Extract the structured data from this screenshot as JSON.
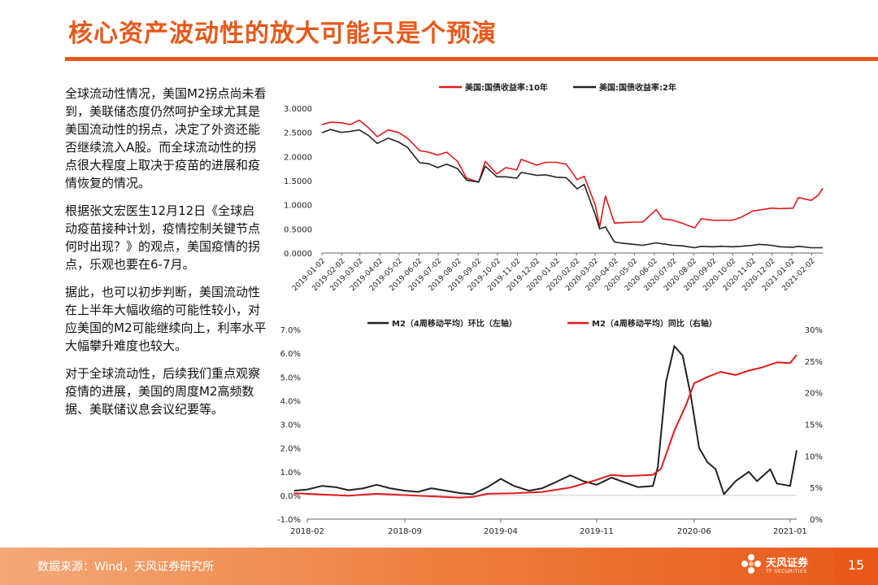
{
  "page": {
    "title": "核心资产波动性的放大可能只是个预演",
    "paragraphs": [
      "全球流动性情况，美国M2拐点尚未看到，美联储态度仍然呵护全球尤其是美国流动性的拐点，决定了外资还能否继续流入A股。而全球流动性的拐点很大程度上取决于疫苗的进展和疫情恢复的情况。",
      "根据张文宏医生12月12日《全球启动疫苗接种计划，疫情控制关键节点何时出现？》的观点，美国疫情的拐点，乐观也要在6-7月。",
      "据此，也可以初步判断，美国流动性在上半年大幅收缩的可能性较小，对应美国的M2可能继续向上，利率水平大幅攀升难度也较大。",
      "对于全球流动性，后续我们重点观察疫情的进展，美国的周度M2高频数据、美联储议息会议纪要等。"
    ],
    "source": "数据来源：Wind，天风证券研究所",
    "page_number": "15",
    "logo_text": "天风证券",
    "logo_sub": "TF SECURITIES",
    "colors": {
      "accent": "#e8591a",
      "red_series": "#e31a1c",
      "black_series": "#222222"
    }
  },
  "chart_data": [
    {
      "type": "line",
      "title": "",
      "series": [
        {
          "name": "美国:国债收益率:10年",
          "color": "#e31a1c",
          "points": [
            [
              "2019-01-02",
              2.66
            ],
            [
              "2019-01-15",
              2.71
            ],
            [
              "2019-02-01",
              2.7
            ],
            [
              "2019-02-15",
              2.66
            ],
            [
              "2019-03-01",
              2.75
            ],
            [
              "2019-03-15",
              2.6
            ],
            [
              "2019-03-29",
              2.41
            ],
            [
              "2019-04-15",
              2.55
            ],
            [
              "2019-05-01",
              2.5
            ],
            [
              "2019-05-15",
              2.38
            ],
            [
              "2019-06-03",
              2.12
            ],
            [
              "2019-06-17",
              2.09
            ],
            [
              "2019-07-01",
              2.03
            ],
            [
              "2019-07-15",
              2.09
            ],
            [
              "2019-08-01",
              1.9
            ],
            [
              "2019-08-15",
              1.55
            ],
            [
              "2019-09-03",
              1.47
            ],
            [
              "2019-09-13",
              1.9
            ],
            [
              "2019-10-01",
              1.64
            ],
            [
              "2019-10-15",
              1.77
            ],
            [
              "2019-11-01",
              1.72
            ],
            [
              "2019-11-08",
              1.94
            ],
            [
              "2019-12-02",
              1.82
            ],
            [
              "2019-12-16",
              1.88
            ],
            [
              "2020-01-02",
              1.88
            ],
            [
              "2020-01-17",
              1.84
            ],
            [
              "2020-02-03",
              1.52
            ],
            [
              "2020-02-14",
              1.59
            ],
            [
              "2020-03-02",
              1.0
            ],
            [
              "2020-03-09",
              0.54
            ],
            [
              "2020-03-18",
              1.18
            ],
            [
              "2020-04-01",
              0.62
            ],
            [
              "2020-04-15",
              0.63
            ],
            [
              "2020-05-01",
              0.64
            ],
            [
              "2020-05-15",
              0.64
            ],
            [
              "2020-06-05",
              0.9
            ],
            [
              "2020-06-15",
              0.71
            ],
            [
              "2020-07-01",
              0.68
            ],
            [
              "2020-07-15",
              0.62
            ],
            [
              "2020-08-04",
              0.52
            ],
            [
              "2020-08-14",
              0.71
            ],
            [
              "2020-09-01",
              0.68
            ],
            [
              "2020-09-15",
              0.68
            ],
            [
              "2020-10-01",
              0.68
            ],
            [
              "2020-10-15",
              0.74
            ],
            [
              "2020-11-02",
              0.87
            ],
            [
              "2020-11-12",
              0.89
            ],
            [
              "2020-12-01",
              0.93
            ],
            [
              "2020-12-15",
              0.92
            ],
            [
              "2021-01-04",
              0.93
            ],
            [
              "2021-01-12",
              1.15
            ],
            [
              "2021-02-01",
              1.09
            ],
            [
              "2021-02-12",
              1.2
            ],
            [
              "2021-02-19",
              1.34
            ]
          ]
        },
        {
          "name": "美国:国债收益率:2年",
          "color": "#222222",
          "points": [
            [
              "2019-01-02",
              2.49
            ],
            [
              "2019-01-15",
              2.56
            ],
            [
              "2019-02-01",
              2.5
            ],
            [
              "2019-02-15",
              2.52
            ],
            [
              "2019-03-01",
              2.55
            ],
            [
              "2019-03-15",
              2.44
            ],
            [
              "2019-03-29",
              2.27
            ],
            [
              "2019-04-15",
              2.38
            ],
            [
              "2019-05-01",
              2.3
            ],
            [
              "2019-05-15",
              2.19
            ],
            [
              "2019-06-03",
              1.87
            ],
            [
              "2019-06-17",
              1.85
            ],
            [
              "2019-07-01",
              1.77
            ],
            [
              "2019-07-15",
              1.84
            ],
            [
              "2019-08-01",
              1.75
            ],
            [
              "2019-08-15",
              1.51
            ],
            [
              "2019-09-03",
              1.47
            ],
            [
              "2019-09-13",
              1.8
            ],
            [
              "2019-10-01",
              1.58
            ],
            [
              "2019-10-15",
              1.58
            ],
            [
              "2019-11-01",
              1.55
            ],
            [
              "2019-11-08",
              1.67
            ],
            [
              "2019-12-02",
              1.61
            ],
            [
              "2019-12-16",
              1.62
            ],
            [
              "2020-01-02",
              1.57
            ],
            [
              "2020-01-17",
              1.56
            ],
            [
              "2020-02-03",
              1.33
            ],
            [
              "2020-02-14",
              1.42
            ],
            [
              "2020-03-02",
              0.8
            ],
            [
              "2020-03-09",
              0.5
            ],
            [
              "2020-03-18",
              0.54
            ],
            [
              "2020-04-01",
              0.23
            ],
            [
              "2020-04-15",
              0.2
            ],
            [
              "2020-05-01",
              0.18
            ],
            [
              "2020-05-15",
              0.16
            ],
            [
              "2020-06-05",
              0.21
            ],
            [
              "2020-06-15",
              0.19
            ],
            [
              "2020-07-01",
              0.16
            ],
            [
              "2020-07-15",
              0.15
            ],
            [
              "2020-08-04",
              0.11
            ],
            [
              "2020-08-14",
              0.14
            ],
            [
              "2020-09-01",
              0.13
            ],
            [
              "2020-09-15",
              0.14
            ],
            [
              "2020-10-01",
              0.13
            ],
            [
              "2020-10-15",
              0.14
            ],
            [
              "2020-11-02",
              0.16
            ],
            [
              "2020-11-12",
              0.18
            ],
            [
              "2020-12-01",
              0.16
            ],
            [
              "2020-12-15",
              0.13
            ],
            [
              "2021-01-04",
              0.12
            ],
            [
              "2021-01-12",
              0.14
            ],
            [
              "2021-02-01",
              0.11
            ],
            [
              "2021-02-12",
              0.11
            ],
            [
              "2021-02-19",
              0.11
            ]
          ]
        }
      ],
      "x_tick_labels": [
        "2019-01-02",
        "2019-02-02",
        "2019-03-02",
        "2019-04-02",
        "2019-05-02",
        "2019-06-02",
        "2019-07-02",
        "2019-08-02",
        "2019-09-02",
        "2019-10-02",
        "2019-11-02",
        "2019-12-02",
        "2020-01-02",
        "2020-02-02",
        "2020-03-02",
        "2020-04-02",
        "2020-05-02",
        "2020-06-02",
        "2020-07-02",
        "2020-08-02",
        "2020-09-02",
        "2020-10-02",
        "2020-11-02",
        "2020-12-02",
        "2021-01-02",
        "2021-02-02"
      ],
      "y_tick_labels": [
        "0.0000",
        "0.5000",
        "1.0000",
        "1.5000",
        "2.0000",
        "2.5000",
        "3.0000"
      ],
      "x_range": [
        "2019-01-02",
        "2021-02-19"
      ],
      "ylim": [
        0,
        3
      ],
      "grid": false,
      "legend_position": "top"
    },
    {
      "type": "line",
      "title": "",
      "series": [
        {
          "name": "M2（4周移动平均）环比（左轴）",
          "color": "#222222",
          "axis": "left",
          "points": [
            [
              2018.0,
              0.2
            ],
            [
              2018.08,
              0.25
            ],
            [
              2018.17,
              0.4
            ],
            [
              2018.25,
              0.35
            ],
            [
              2018.33,
              0.22
            ],
            [
              2018.42,
              0.3
            ],
            [
              2018.5,
              0.45
            ],
            [
              2018.58,
              0.3
            ],
            [
              2018.67,
              0.2
            ],
            [
              2018.75,
              0.15
            ],
            [
              2018.83,
              0.3
            ],
            [
              2018.92,
              0.2
            ],
            [
              2019.0,
              0.1
            ],
            [
              2019.08,
              0.05
            ],
            [
              2019.17,
              0.35
            ],
            [
              2019.25,
              0.7
            ],
            [
              2019.33,
              0.4
            ],
            [
              2019.42,
              0.2
            ],
            [
              2019.5,
              0.3
            ],
            [
              2019.58,
              0.55
            ],
            [
              2019.67,
              0.85
            ],
            [
              2019.75,
              0.6
            ],
            [
              2019.83,
              0.45
            ],
            [
              2019.92,
              0.75
            ],
            [
              2020.0,
              0.55
            ],
            [
              2020.08,
              0.35
            ],
            [
              2020.17,
              0.4
            ],
            [
              2020.2,
              1.2
            ],
            [
              2020.25,
              4.8
            ],
            [
              2020.3,
              6.3
            ],
            [
              2020.35,
              5.9
            ],
            [
              2020.4,
              4.2
            ],
            [
              2020.45,
              2.0
            ],
            [
              2020.5,
              1.4
            ],
            [
              2020.55,
              1.1
            ],
            [
              2020.6,
              0.05
            ],
            [
              2020.67,
              0.6
            ],
            [
              2020.75,
              1.0
            ],
            [
              2020.8,
              0.6
            ],
            [
              2020.88,
              1.1
            ],
            [
              2020.92,
              0.5
            ],
            [
              2021.0,
              0.4
            ],
            [
              2021.04,
              1.9
            ]
          ]
        },
        {
          "name": "M2（4周移动平均）同比（右轴）",
          "color": "#e31a1c",
          "axis": "right",
          "points": [
            [
              2018.0,
              4.1
            ],
            [
              2018.17,
              3.9
            ],
            [
              2018.33,
              3.7
            ],
            [
              2018.5,
              4.0
            ],
            [
              2018.67,
              3.8
            ],
            [
              2018.83,
              3.6
            ],
            [
              2019.0,
              3.4
            ],
            [
              2019.08,
              3.5
            ],
            [
              2019.17,
              4.0
            ],
            [
              2019.33,
              4.1
            ],
            [
              2019.5,
              4.3
            ],
            [
              2019.67,
              5.0
            ],
            [
              2019.75,
              5.6
            ],
            [
              2019.83,
              6.2
            ],
            [
              2019.92,
              7.0
            ],
            [
              2020.0,
              6.8
            ],
            [
              2020.17,
              7.0
            ],
            [
              2020.22,
              8.0
            ],
            [
              2020.3,
              14.0
            ],
            [
              2020.37,
              18.0
            ],
            [
              2020.42,
              21.5
            ],
            [
              2020.5,
              22.5
            ],
            [
              2020.58,
              23.3
            ],
            [
              2020.67,
              22.8
            ],
            [
              2020.75,
              23.5
            ],
            [
              2020.83,
              24.0
            ],
            [
              2020.92,
              24.8
            ],
            [
              2021.0,
              24.7
            ],
            [
              2021.04,
              26.0
            ]
          ]
        }
      ],
      "x_tick_labels": [
        "2018-02",
        "2018-09",
        "2019-04",
        "2019-11",
        "2020-06",
        "2021-01"
      ],
      "x_tick_values": [
        2018.08,
        2018.67,
        2019.25,
        2019.83,
        2020.42,
        2021.0
      ],
      "x_range": [
        2018.08,
        2021.04
      ],
      "y_left_tick_labels": [
        "-1.0%",
        "0.0%",
        "1.0%",
        "2.0%",
        "3.0%",
        "4.0%",
        "5.0%",
        "6.0%",
        "7.0%"
      ],
      "y_left_lim": [
        -1,
        7
      ],
      "y_right_tick_labels": [
        "0%",
        "5%",
        "10%",
        "15%",
        "20%",
        "25%",
        "30%"
      ],
      "y_right_lim": [
        0,
        30
      ],
      "grid": false,
      "legend_position": "top"
    }
  ]
}
